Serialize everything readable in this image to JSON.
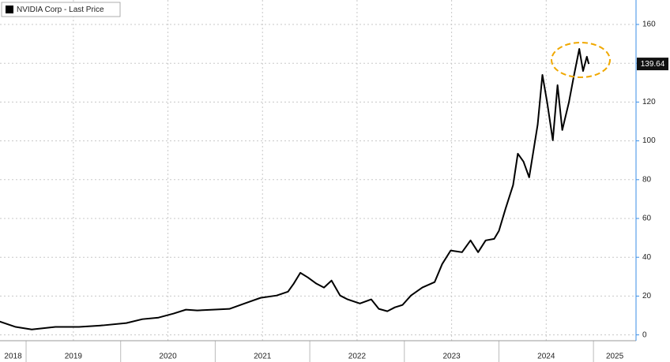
{
  "chart_data": {
    "type": "line",
    "series": [
      {
        "name": "NVIDIA Corp - Last Price",
        "color": "#000000",
        "x": [
          2018.72,
          2018.89,
          2019.06,
          2019.31,
          2019.56,
          2019.81,
          2020.06,
          2020.23,
          2020.4,
          2020.56,
          2020.69,
          2020.81,
          2020.98,
          2021.15,
          2021.31,
          2021.48,
          2021.65,
          2021.77,
          2021.83,
          2021.9,
          2021.98,
          2022.07,
          2022.15,
          2022.23,
          2022.32,
          2022.4,
          2022.53,
          2022.65,
          2022.73,
          2022.82,
          2022.9,
          2022.98,
          2023.07,
          2023.19,
          2023.32,
          2023.4,
          2023.49,
          2023.61,
          2023.7,
          2023.78,
          2023.86,
          2023.95,
          2024.0,
          2024.07,
          2024.15,
          2024.2,
          2024.26,
          2024.32,
          2024.41,
          2024.46,
          2024.51,
          2024.57,
          2024.62,
          2024.67,
          2024.74,
          2024.79,
          2024.85,
          2024.89,
          2024.93,
          2024.95
        ],
        "values": [
          6.9,
          4.1,
          2.8,
          4.1,
          4.1,
          4.9,
          6.1,
          8.1,
          8.9,
          11.0,
          13.0,
          12.6,
          13.0,
          13.4,
          16.2,
          19.1,
          20.3,
          22.3,
          26.4,
          32.0,
          29.6,
          26.4,
          24.4,
          28.0,
          20.3,
          18.3,
          16.2,
          18.3,
          13.4,
          12.2,
          14.2,
          15.4,
          20.3,
          24.4,
          27.2,
          36.5,
          43.5,
          42.6,
          48.7,
          42.6,
          48.7,
          49.5,
          53.6,
          65.0,
          77.2,
          93.4,
          89.3,
          81.2,
          108.4,
          134.0,
          119.9,
          100.3,
          128.7,
          105.6,
          119.8,
          132.8,
          147.4,
          136.0,
          143.4,
          139.64
        ]
      }
    ],
    "last_price": 139.64,
    "xlim": [
      2018.724,
      2025.45
    ],
    "xticks": [
      2018,
      2019,
      2020,
      2021,
      2022,
      2023,
      2024,
      2025
    ],
    "ylim": [
      -3,
      172.6
    ],
    "yticks": [
      0,
      20,
      40,
      60,
      80,
      100,
      120,
      140,
      160
    ],
    "grid": true
  }
}
